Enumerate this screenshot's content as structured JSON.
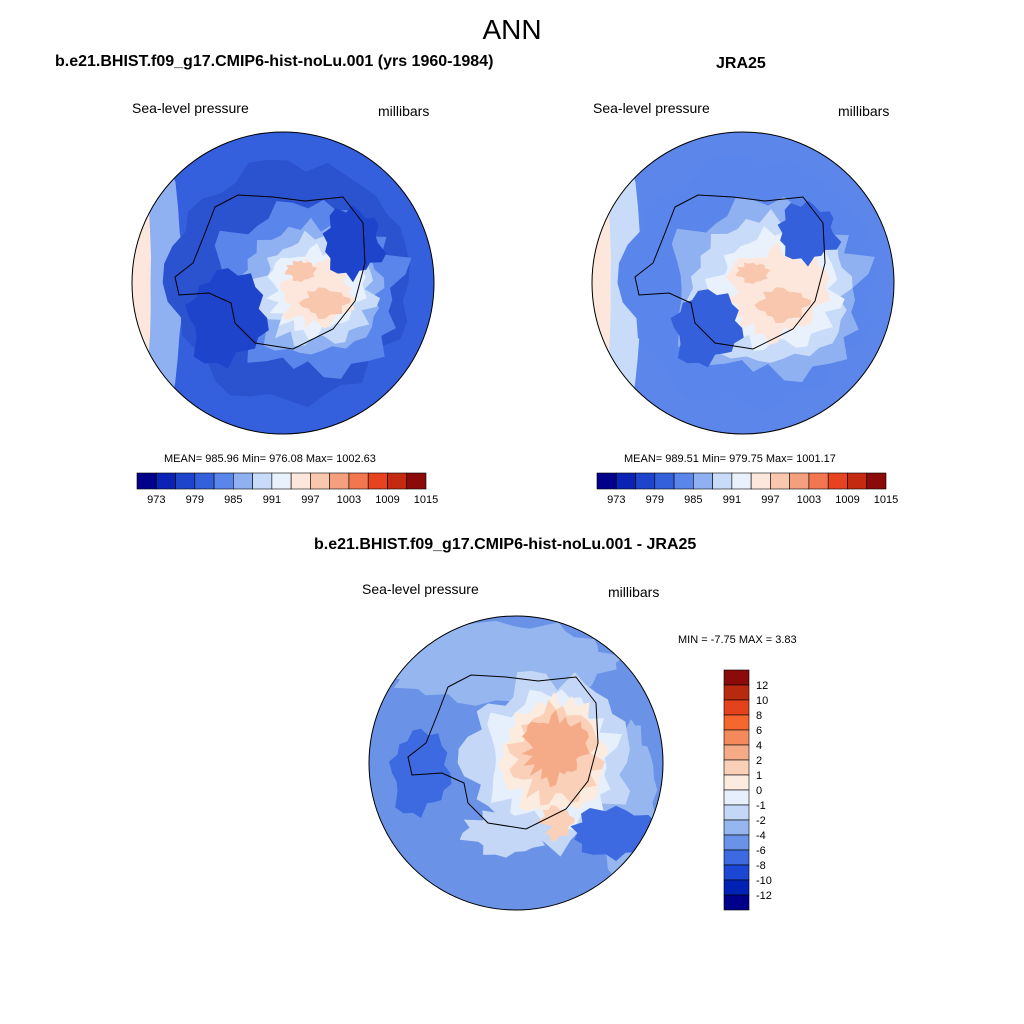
{
  "title": "ANN",
  "panels": [
    {
      "id": "model",
      "title": "b.e21.BHIST.f09_g17.CMIP6-hist-noLu.001 (yrs 1960-1984)",
      "left_label": "Sea-level pressure",
      "right_label": "millibars",
      "stats": "MEAN= 985.96  Min= 976.08  Max= 1002.63",
      "colorbar_ticks": [
        "973",
        "979",
        "985",
        "991",
        "997",
        "1003",
        "1009",
        "1015"
      ]
    },
    {
      "id": "obs",
      "title": "JRA25",
      "left_label": "Sea-level pressure",
      "right_label": "millibars",
      "stats": "MEAN= 989.51  Min= 979.75  Max= 1001.17",
      "colorbar_ticks": [
        "973",
        "979",
        "985",
        "991",
        "997",
        "1003",
        "1009",
        "1015"
      ]
    },
    {
      "id": "diff",
      "title": "b.e21.BHIST.f09_g17.CMIP6-hist-noLu.001 - JRA25",
      "left_label": "Sea-level pressure",
      "right_label": "millibars",
      "stats": "MIN =  -7.75 MAX =   3.83",
      "colorbar_ticks": [
        "12",
        "10",
        "8",
        "6",
        "4",
        "2",
        "1",
        "0",
        "-1",
        "-2",
        "-4",
        "-6",
        "-8",
        "-10",
        "-12"
      ]
    }
  ],
  "colors": {
    "abs_scale": [
      "#00008b",
      "#0a23b4",
      "#1f44cc",
      "#3460dc",
      "#5a85ea",
      "#8fb1f2",
      "#c8dcf9",
      "#e9f1fc",
      "#fde7dc",
      "#f8c7ad",
      "#f4a07f",
      "#f27650",
      "#e8431f",
      "#c32a0f",
      "#8b0a0a"
    ],
    "diff_scale": [
      "#8b0a0a",
      "#b82a0f",
      "#e3421d",
      "#f5672f",
      "#f48a5c",
      "#f6ab88",
      "#fad0b8",
      "#fbecdf",
      "#e6effc",
      "#c4d7f6",
      "#95b6ef",
      "#6a92e8",
      "#3d6ae0",
      "#1b47d4",
      "#0022b4",
      "#00008b"
    ],
    "ocean_model": "#3560dd",
    "ocean_obs": "#5c86ea",
    "ocean_diff": "#6a93e8"
  },
  "icons": [
    "antarctica-coastline"
  ]
}
